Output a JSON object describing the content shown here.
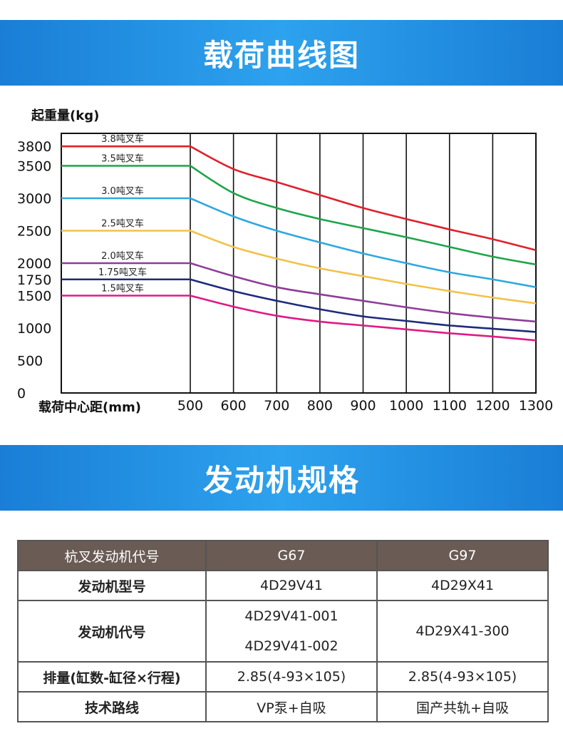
{
  "sections": {
    "load_curve_title": "载荷曲线图",
    "engine_spec_title": "发动机规格"
  },
  "chart_data": {
    "type": "line",
    "ylabel": "起重量(kg)",
    "xlabel": "载荷中心距(mm)",
    "x_ticks": [
      500,
      600,
      700,
      800,
      900,
      1000,
      1100,
      1200,
      1300
    ],
    "y_ticks": [
      0,
      500,
      1000,
      1500,
      1750,
      2000,
      2500,
      3000,
      3500,
      3800
    ],
    "xlim": [
      200,
      1300
    ],
    "ylim": [
      0,
      4000
    ],
    "grid": true,
    "x": [
      200,
      500,
      600,
      700,
      800,
      900,
      1000,
      1100,
      1200,
      1300
    ],
    "series": [
      {
        "name": "3.8吨叉车",
        "color": "#e0202c",
        "values": [
          3800,
          3800,
          3450,
          3250,
          3050,
          2850,
          2680,
          2520,
          2370,
          2200
        ]
      },
      {
        "name": "3.5吨叉车",
        "color": "#1ea54a",
        "values": [
          3500,
          3500,
          3080,
          2850,
          2680,
          2540,
          2400,
          2250,
          2100,
          1980
        ]
      },
      {
        "name": "3.0吨叉车",
        "color": "#2ea8e0",
        "values": [
          3000,
          3000,
          2720,
          2500,
          2320,
          2150,
          2000,
          1860,
          1750,
          1630
        ]
      },
      {
        "name": "2.5吨叉车",
        "color": "#f1c24a",
        "values": [
          2500,
          2500,
          2250,
          2070,
          1920,
          1800,
          1680,
          1570,
          1470,
          1380
        ]
      },
      {
        "name": "2.0吨叉车",
        "color": "#8e3d98",
        "values": [
          2000,
          2000,
          1800,
          1630,
          1520,
          1420,
          1320,
          1230,
          1160,
          1100
        ]
      },
      {
        "name": "1.75吨叉车",
        "color": "#1f2a7c",
        "values": [
          1750,
          1750,
          1570,
          1420,
          1290,
          1180,
          1110,
          1040,
          990,
          940
        ]
      },
      {
        "name": "1.5吨叉车",
        "color": "#e01a84",
        "values": [
          1500,
          1500,
          1330,
          1190,
          1100,
          1040,
          980,
          920,
          870,
          810
        ]
      }
    ]
  },
  "engine_table": {
    "header": [
      "杭叉发动机代号",
      "G67",
      "G97"
    ],
    "rows": [
      {
        "label": "发动机型号",
        "g67": "4D29V41",
        "g97": "4D29X41"
      },
      {
        "label": "发动机代号",
        "g67_a": "4D29V41-001",
        "g67_b": "4D29V41-002",
        "g97": "4D29X41-300"
      },
      {
        "label": "排量(缸数-缸径×行程)",
        "g67": "2.85(4-93×105)",
        "g97": "2.85(4-93×105)"
      },
      {
        "label": "技术路线",
        "g67": "VP泵+自吸",
        "g97": "国产共轨+自吸"
      }
    ]
  }
}
